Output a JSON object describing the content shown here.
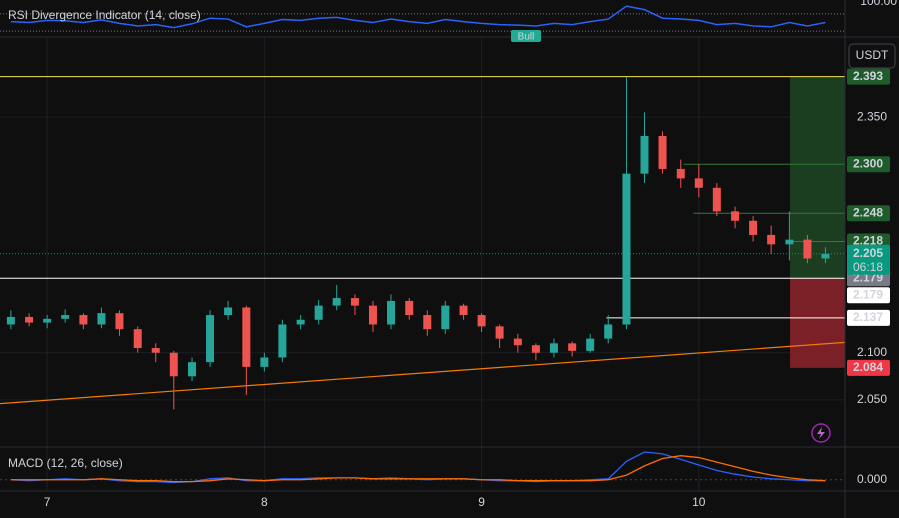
{
  "chart_data": {
    "type": "candlestick",
    "rsi_title": "RSI Divergence Indicator (14, close)",
    "rsi_tag": "Bull",
    "rsi_top_label": "100.00",
    "currency_button": "USDT",
    "macd_title": "MACD (12, 26, close)",
    "x": [
      6.833,
      6.917,
      7.0,
      7.083,
      7.167,
      7.25,
      7.333,
      7.417,
      7.5,
      7.583,
      7.667,
      7.75,
      7.833,
      7.917,
      8.0,
      8.083,
      8.167,
      8.25,
      8.333,
      8.417,
      8.5,
      8.583,
      8.667,
      8.75,
      8.833,
      8.917,
      9.0,
      9.083,
      9.167,
      9.25,
      9.333,
      9.417,
      9.5,
      9.583,
      9.667,
      9.75,
      9.833,
      9.917,
      10.0,
      10.083,
      10.167,
      10.25,
      10.333,
      10.417,
      10.5,
      10.583
    ],
    "open": [
      2.13,
      2.138,
      2.132,
      2.136,
      2.14,
      2.13,
      2.142,
      2.125,
      2.105,
      2.1,
      2.075,
      2.09,
      2.14,
      2.148,
      2.085,
      2.095,
      2.13,
      2.135,
      2.15,
      2.158,
      2.15,
      2.13,
      2.155,
      2.14,
      2.125,
      2.15,
      2.14,
      2.128,
      2.115,
      2.108,
      2.1,
      2.11,
      2.102,
      2.115,
      2.13,
      2.29,
      2.33,
      2.295,
      2.285,
      2.275,
      2.25,
      2.24,
      2.225,
      2.215,
      2.22,
      2.2
    ],
    "high": [
      2.145,
      2.142,
      2.14,
      2.146,
      2.142,
      2.148,
      2.145,
      2.128,
      2.11,
      2.102,
      2.095,
      2.145,
      2.155,
      2.15,
      2.1,
      2.135,
      2.14,
      2.156,
      2.172,
      2.162,
      2.155,
      2.162,
      2.158,
      2.145,
      2.155,
      2.152,
      2.142,
      2.13,
      2.12,
      2.11,
      2.115,
      2.112,
      2.12,
      2.14,
      2.392,
      2.355,
      2.335,
      2.305,
      2.3,
      2.28,
      2.255,
      2.245,
      2.235,
      2.25,
      2.225,
      2.212
    ],
    "low": [
      2.125,
      2.128,
      2.126,
      2.132,
      2.125,
      2.126,
      2.118,
      2.1,
      2.09,
      2.04,
      2.07,
      2.085,
      2.135,
      2.055,
      2.08,
      2.09,
      2.125,
      2.13,
      2.145,
      2.14,
      2.122,
      2.125,
      2.135,
      2.118,
      2.12,
      2.135,
      2.122,
      2.105,
      2.1,
      2.092,
      2.095,
      2.096,
      2.1,
      2.11,
      2.125,
      2.28,
      2.29,
      2.275,
      2.265,
      2.245,
      2.232,
      2.218,
      2.205,
      2.198,
      2.195,
      2.195
    ],
    "close": [
      2.138,
      2.132,
      2.136,
      2.14,
      2.13,
      2.142,
      2.125,
      2.105,
      2.1,
      2.075,
      2.09,
      2.14,
      2.148,
      2.085,
      2.095,
      2.13,
      2.135,
      2.15,
      2.158,
      2.15,
      2.13,
      2.155,
      2.14,
      2.125,
      2.15,
      2.14,
      2.128,
      2.115,
      2.108,
      2.1,
      2.11,
      2.102,
      2.115,
      2.13,
      2.29,
      2.33,
      2.295,
      2.285,
      2.275,
      2.25,
      2.24,
      2.225,
      2.215,
      2.22,
      2.2,
      2.205
    ],
    "up_color": "#26a69a",
    "down_color": "#ef5350",
    "xlim": [
      6.783,
      10.673
    ],
    "xticks": [
      7,
      8,
      9,
      10
    ],
    "ylim": [
      2.0,
      2.435
    ],
    "yticks": [
      {
        "value": 2.05,
        "label": "2.050"
      },
      {
        "value": 2.1,
        "label": "2.100"
      },
      {
        "value": 2.35,
        "label": "2.350"
      }
    ],
    "grid": true,
    "price_labels": [
      {
        "value": 2.393,
        "label": "2.393",
        "bg": "#1e5c2b",
        "fg": "#ffffff"
      },
      {
        "value": 2.3,
        "label": "2.300",
        "bg": "#1e5c2b",
        "fg": "#ffffff"
      },
      {
        "value": 2.248,
        "label": "2.248",
        "bg": "#1e5c2b",
        "fg": "#ffffff"
      },
      {
        "value": 2.218,
        "label": "2.218",
        "bg": "#1e5c2b",
        "fg": "#ffffff"
      },
      {
        "value": 2.179,
        "label": "2.179",
        "bg": "#787b86",
        "fg": "#ffffff"
      },
      {
        "value": 2.179,
        "label": "2.179",
        "bg": "#ffffff",
        "fg": "#000000"
      },
      {
        "value": 2.137,
        "label": "2.137",
        "bg": "#ffffff",
        "fg": "#000000"
      },
      {
        "value": 2.084,
        "label": "2.084",
        "bg": "#f23645",
        "fg": "#ffffff"
      }
    ],
    "last_price": {
      "value": 2.205,
      "label": "2.205",
      "countdown": "06:18",
      "bg": "#089981"
    },
    "hlines": [
      {
        "value": 2.393,
        "from": 6.783,
        "color": "#f2e35b"
      },
      {
        "value": 2.179,
        "from": 6.783,
        "color": "#ffffff"
      },
      {
        "value": 2.137,
        "from": 9.575,
        "color": "#ffffff"
      },
      {
        "value": 2.3,
        "from": 9.93,
        "color": "#2e7d32"
      },
      {
        "value": 2.248,
        "from": 9.975,
        "color": "#2e7d32"
      },
      {
        "value": 2.218,
        "from": 10.42,
        "color": "#2e7d32"
      }
    ],
    "trendline": {
      "x": [
        6.783,
        10.673
      ],
      "y": [
        2.046,
        2.111
      ],
      "color": "#f57c00"
    },
    "position": {
      "from": 10.42,
      "to": 10.673,
      "target": 2.393,
      "entry": 2.179,
      "stop": 2.084,
      "profit_color": "#1b3d20",
      "loss_color": "#7a2026"
    },
    "rsi": {
      "color": "#2962ff",
      "ylim": [
        0,
        100
      ],
      "bands": [
        70,
        30
      ],
      "values": [
        52,
        50,
        55,
        54,
        50,
        56,
        48,
        42,
        45,
        38,
        47,
        60,
        58,
        40,
        48,
        57,
        55,
        60,
        62,
        55,
        50,
        58,
        52,
        48,
        57,
        52,
        48,
        45,
        44,
        42,
        48,
        45,
        52,
        58,
        88,
        80,
        60,
        58,
        55,
        45,
        48,
        42,
        40,
        50,
        42,
        50
      ]
    },
    "macd": {
      "ylim": [
        -0.01,
        0.03
      ],
      "yticks": [
        {
          "value": 0,
          "label": "0.000"
        }
      ],
      "series": [
        {
          "color": "#2962ff",
          "values": [
            0,
            -0.001,
            0,
            0.001,
            0,
            0.001,
            -0.001,
            -0.002,
            -0.002,
            -0.003,
            -0.002,
            0.001,
            0.002,
            -0.001,
            -0.001,
            0.001,
            0.001,
            0.002,
            0.002,
            0.002,
            0.001,
            0.002,
            0.001,
            0,
            0.001,
            0.001,
            0,
            -0.001,
            -0.001,
            -0.002,
            -0.001,
            -0.001,
            0,
            0.001,
            0.02,
            0.03,
            0.028,
            0.022,
            0.016,
            0.01,
            0.006,
            0.003,
            0.001,
            0,
            -0.001,
            -0.001
          ]
        },
        {
          "color": "#ff6d00",
          "values": [
            0,
            0,
            0,
            0,
            0,
            0.001,
            0,
            -0.001,
            -0.001,
            -0.002,
            -0.002,
            -0.001,
            0.001,
            0,
            -0.001,
            0,
            0,
            0.001,
            0.002,
            0.002,
            0.001,
            0.001,
            0.001,
            0.001,
            0.001,
            0.001,
            0,
            0,
            -0.001,
            -0.001,
            -0.001,
            -0.001,
            -0.001,
            0,
            0.005,
            0.015,
            0.023,
            0.026,
            0.024,
            0.019,
            0.014,
            0.009,
            0.005,
            0.002,
            0,
            -0.001
          ]
        }
      ]
    }
  }
}
